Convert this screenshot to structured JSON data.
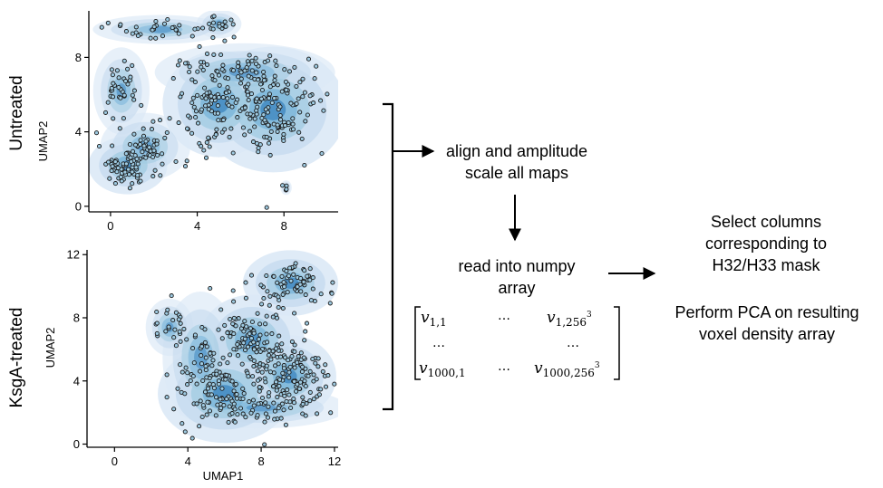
{
  "panels": {
    "untreated": {
      "row_label": "Untreated",
      "ylabel": "UMAP2",
      "xlabel": "",
      "xticks": [
        "0",
        "4",
        "8"
      ],
      "yticks": [
        "0",
        "4",
        "8"
      ]
    },
    "ksga": {
      "row_label": "KsgA-treated",
      "ylabel": "UMAP2",
      "xlabel": "UMAP1",
      "xticks": [
        "0",
        "4",
        "8",
        "12"
      ],
      "yticks": [
        "0",
        "4",
        "8",
        "12"
      ]
    }
  },
  "flow": {
    "step1": [
      "align and amplitude",
      "scale all maps"
    ],
    "step2": [
      "read into numpy",
      "array"
    ],
    "step3": [
      "Select columns",
      "corresponding to",
      "H32/H33 mask"
    ],
    "step4": [
      "Perform PCA on resulting",
      "voxel  density array"
    ]
  },
  "matrix": {
    "r1c1": "v",
    "r1c1_sub": "1,1",
    "r1c2": "…",
    "r1c3": "v",
    "r1c3_sub": "1,256",
    "r1c3_sup": "3",
    "r2c1": "…",
    "r2c3": "…",
    "r3c1": "v",
    "r3c1_sub": "1000,1",
    "r3c2": "…",
    "r3c3": "v",
    "r3c3_sub": "1000,256",
    "r3c3_sup": "3"
  },
  "colors": {
    "density_light": "#dbe9f6",
    "density_mid": "#6aaed6",
    "density_dark": "#08519c",
    "point_fill": "#9ecae1",
    "point_edge": "#1a1a1a",
    "ink": "#000000"
  },
  "chart_data": [
    {
      "type": "scatter",
      "name_row": "Untreated",
      "xlabel": "",
      "ylabel": "UMAP2",
      "xlim": [
        -1,
        10.5
      ],
      "ylim": [
        -0.3,
        10.5
      ],
      "xticks": [
        0,
        4,
        8
      ],
      "yticks": [
        0,
        4,
        8
      ],
      "overlay": "kde-density",
      "clusters": [
        {
          "cx": 0.8,
          "cy": 2.2,
          "sx": 0.7,
          "sy": 0.6,
          "n": 70
        },
        {
          "cx": 1.6,
          "cy": 3.2,
          "sx": 0.8,
          "sy": 0.7,
          "n": 40
        },
        {
          "cx": 0.5,
          "cy": 6.2,
          "sx": 0.5,
          "sy": 0.9,
          "n": 35
        },
        {
          "cx": 2.3,
          "cy": 9.5,
          "sx": 1.2,
          "sy": 0.3,
          "n": 30
        },
        {
          "cx": 5.0,
          "cy": 9.8,
          "sx": 0.4,
          "sy": 0.3,
          "n": 18
        },
        {
          "cx": 5.0,
          "cy": 5.5,
          "sx": 1.0,
          "sy": 1.1,
          "n": 100
        },
        {
          "cx": 7.5,
          "cy": 5.2,
          "sx": 1.3,
          "sy": 1.3,
          "n": 130
        },
        {
          "cx": 6.2,
          "cy": 7.2,
          "sx": 1.6,
          "sy": 0.6,
          "n": 50
        },
        {
          "cx": 8.1,
          "cy": 1.0,
          "sx": 0.1,
          "sy": 0.15,
          "n": 4
        }
      ]
    },
    {
      "type": "scatter",
      "name_row": "KsgA-treated",
      "xlabel": "UMAP1",
      "ylabel": "UMAP2",
      "xlim": [
        -1.5,
        12.2
      ],
      "ylim": [
        -0.2,
        12.3
      ],
      "xticks": [
        0,
        4,
        8,
        12
      ],
      "yticks": [
        0,
        4,
        8,
        12
      ],
      "overlay": "kde-density",
      "clusters": [
        {
          "cx": 3.0,
          "cy": 7.4,
          "sx": 0.5,
          "sy": 0.7,
          "n": 22
        },
        {
          "cx": 9.6,
          "cy": 10.2,
          "sx": 1.0,
          "sy": 0.8,
          "n": 70
        },
        {
          "cx": 7.5,
          "cy": 6.6,
          "sx": 1.1,
          "sy": 1.1,
          "n": 110
        },
        {
          "cx": 9.5,
          "cy": 4.3,
          "sx": 1.0,
          "sy": 1.0,
          "n": 110
        },
        {
          "cx": 6.0,
          "cy": 3.2,
          "sx": 1.4,
          "sy": 1.2,
          "n": 90
        },
        {
          "cx": 8.0,
          "cy": 2.3,
          "sx": 1.8,
          "sy": 0.5,
          "n": 40
        },
        {
          "cx": 4.7,
          "cy": 5.5,
          "sx": 0.8,
          "sy": 1.6,
          "n": 35
        }
      ]
    }
  ]
}
